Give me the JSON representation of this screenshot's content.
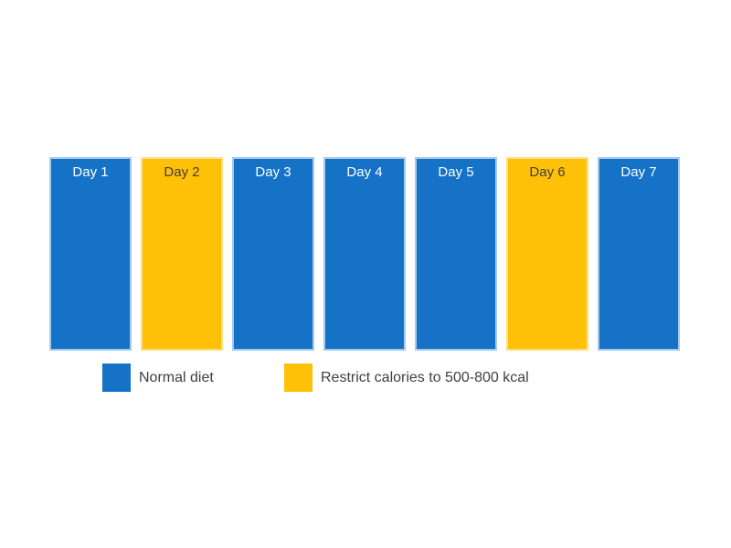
{
  "colors": {
    "normal": "#1572C6",
    "normal_border": "#A6CAEC",
    "restricted": "#FFC107",
    "restricted_border": "#FFDF8C",
    "label_on_normal": "#FFFFFF",
    "label_on_restricted": "#3F3F3F",
    "legend_text": "#3F3F3F",
    "background": "#FFFFFF"
  },
  "days": [
    {
      "label": "Day 1",
      "diet": "normal"
    },
    {
      "label": "Day 2",
      "diet": "restricted"
    },
    {
      "label": "Day 3",
      "diet": "normal"
    },
    {
      "label": "Day 4",
      "diet": "normal"
    },
    {
      "label": "Day 5",
      "diet": "normal"
    },
    {
      "label": "Day 6",
      "diet": "restricted"
    },
    {
      "label": "Day 7",
      "diet": "normal"
    }
  ],
  "legend": {
    "items": [
      {
        "label": "Normal diet",
        "diet": "normal"
      },
      {
        "label": "Restrict calories to 500-800 kcal",
        "diet": "restricted"
      }
    ]
  }
}
